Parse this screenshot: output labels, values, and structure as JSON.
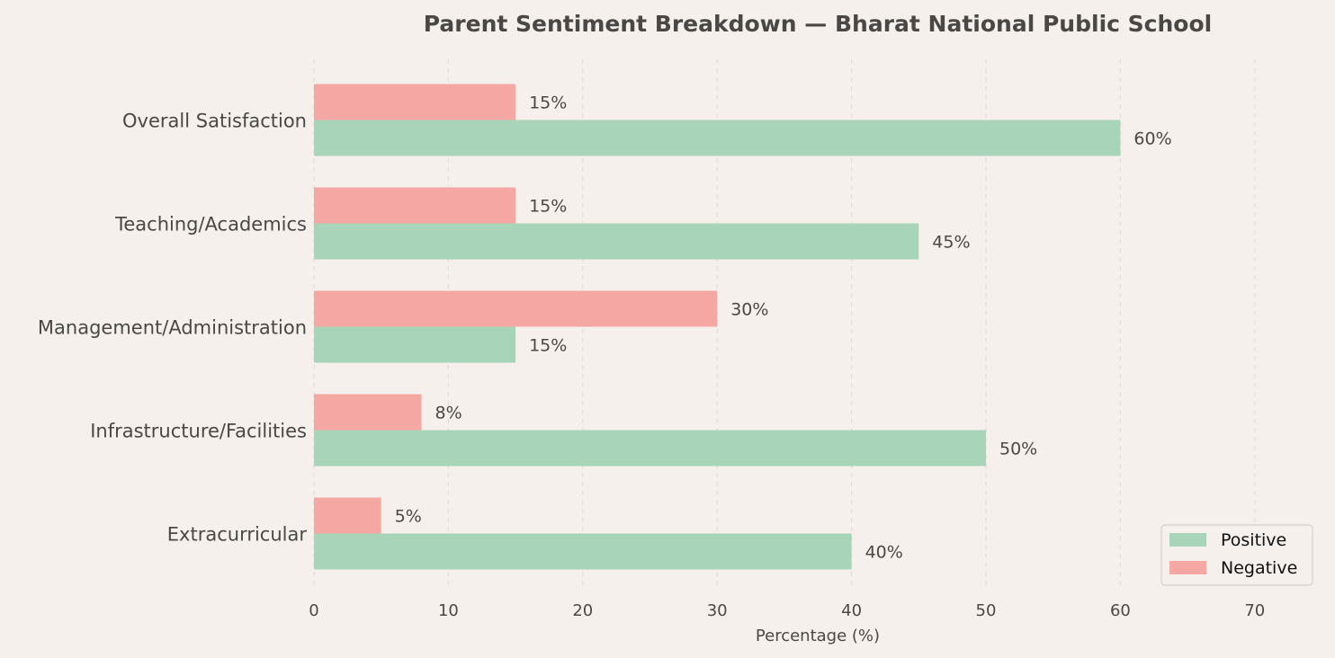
{
  "chart_data": {
    "type": "bar",
    "orientation": "horizontal",
    "title": "Parent Sentiment Breakdown — Bharat National Public School",
    "xlabel": "Percentage (%)",
    "ylabel": "",
    "xlim": [
      0,
      75
    ],
    "xticks": [
      0,
      10,
      20,
      30,
      40,
      50,
      60,
      70
    ],
    "grid": "x-dashed",
    "legend_position": "bottom-right",
    "categories": [
      "Overall Satisfaction",
      "Teaching/Academics",
      "Management/Administration",
      "Infrastructure/Facilities",
      "Extracurricular"
    ],
    "series": [
      {
        "name": "Positive",
        "color": "#a8d5ba",
        "values": [
          60,
          45,
          15,
          50,
          40
        ],
        "labels": [
          "60%",
          "45%",
          "15%",
          "50%",
          "40%"
        ]
      },
      {
        "name": "Negative",
        "color": "#f4a7a3",
        "values": [
          15,
          15,
          30,
          8,
          5
        ],
        "labels": [
          "15%",
          "15%",
          "30%",
          "8%",
          "5%"
        ]
      }
    ]
  }
}
